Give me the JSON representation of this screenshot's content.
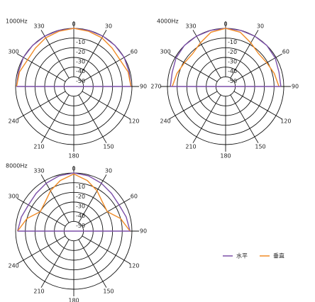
{
  "chart_data": [
    {
      "type": "polar",
      "title": "1000Hz",
      "theta": [
        -90,
        -75,
        -60,
        -45,
        -30,
        -15,
        0,
        15,
        30,
        45,
        60,
        75,
        90
      ],
      "rlim": [
        -60,
        0
      ],
      "rticks": [
        -10,
        -20,
        -30,
        -40,
        -50
      ],
      "thetaticks": [
        0,
        30,
        60,
        90,
        120,
        150,
        180,
        210,
        240,
        300,
        330
      ],
      "series": [
        {
          "name": "水平",
          "color": "#7b4fa8",
          "values": [
            -1,
            -1,
            0,
            0,
            0,
            0,
            0,
            0,
            0,
            0,
            0,
            -1,
            -1
          ]
        },
        {
          "name": "垂直",
          "color": "#f08a24",
          "values": [
            -1,
            -2,
            -5,
            -4,
            -2,
            -1,
            0,
            -1,
            -2,
            -4,
            -5,
            -2,
            -1
          ]
        }
      ]
    },
    {
      "type": "polar",
      "title": "4000Hz",
      "theta": [
        -90,
        -75,
        -60,
        -45,
        -30,
        -15,
        0,
        15,
        30,
        45,
        60,
        75,
        90
      ],
      "rlim": [
        -60,
        0
      ],
      "rticks": [
        -10,
        -20,
        -30,
        -40,
        -50
      ],
      "thetaticks": [
        0,
        30,
        60,
        90,
        120,
        150,
        180,
        210,
        240,
        270,
        300,
        330
      ],
      "series": [
        {
          "name": "水平",
          "color": "#7b4fa8",
          "values": [
            -3,
            -3,
            -1,
            0,
            0,
            0,
            0,
            0,
            0,
            0,
            -1,
            -3,
            -3
          ]
        },
        {
          "name": "垂直",
          "color": "#f08a24",
          "values": [
            -5,
            -8,
            -11,
            -12,
            -8,
            -2,
            0,
            -2,
            -8,
            -12,
            -11,
            -8,
            -5
          ]
        }
      ]
    },
    {
      "type": "polar",
      "title": "8000Hz",
      "theta": [
        -90,
        -75,
        -60,
        -45,
        -30,
        -15,
        0,
        15,
        30,
        45,
        60,
        75,
        90
      ],
      "rlim": [
        -60,
        0
      ],
      "rticks": [
        -10,
        -20,
        -30,
        -40,
        -50
      ],
      "thetaticks": [
        0,
        30,
        60,
        90,
        120,
        150,
        180,
        210,
        240,
        300,
        330
      ],
      "series": [
        {
          "name": "水平",
          "color": "#7b4fa8",
          "values": [
            -2,
            -4,
            -6,
            -5,
            -3,
            -1,
            0,
            -1,
            -3,
            -5,
            -6,
            -4,
            -2
          ]
        },
        {
          "name": "垂直",
          "color": "#f08a24",
          "values": [
            -2,
            -10,
            -20,
            -18,
            -12,
            -6,
            -1,
            -6,
            -12,
            -18,
            -20,
            -10,
            -2
          ]
        }
      ]
    }
  ]
}
